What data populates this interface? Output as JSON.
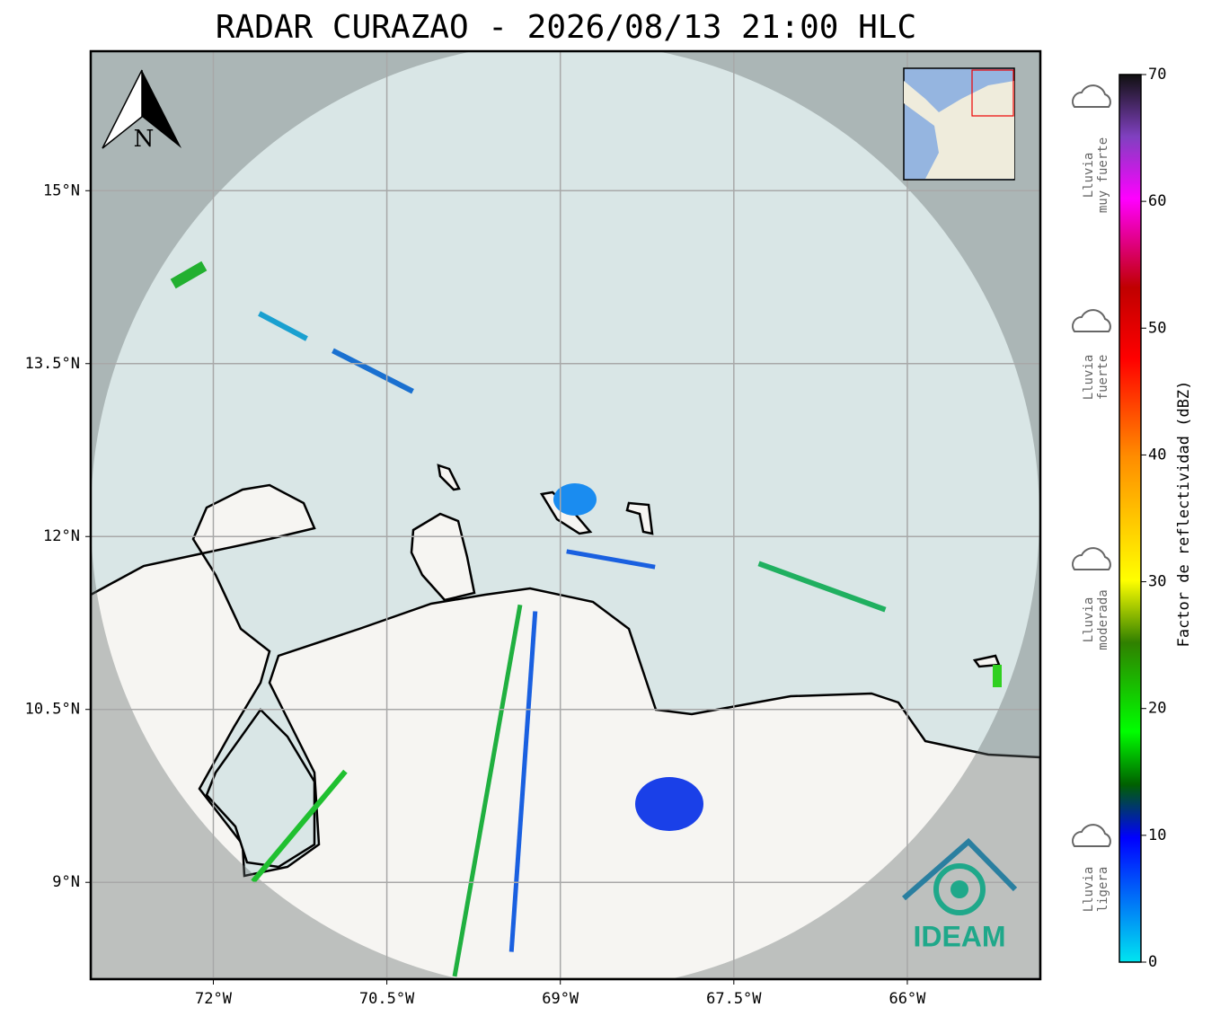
{
  "map": {
    "title": "RADAR CURAZAO - 2026/08/13 21:00 HLC",
    "xlim": [
      -73.06,
      -64.85
    ],
    "ylim": [
      8.16,
      16.21
    ],
    "lon_ticks": [
      {
        "value": -72,
        "label": "72°W"
      },
      {
        "value": -70.5,
        "label": "70.5°W"
      },
      {
        "value": -69,
        "label": "69°W"
      },
      {
        "value": -67.5,
        "label": "67.5°W"
      },
      {
        "value": -66,
        "label": "66°W"
      }
    ],
    "lat_ticks": [
      {
        "value": 15,
        "label": "15°N"
      },
      {
        "value": 13.5,
        "label": "13.5°N"
      },
      {
        "value": 12,
        "label": "12°N"
      },
      {
        "value": 10.5,
        "label": "10.5°N"
      },
      {
        "value": 9,
        "label": "9°N"
      }
    ],
    "north": "N",
    "logo": "IDEAM"
  },
  "colorbar": {
    "label": "Factor de reflectividad (dBZ)",
    "lim": [
      0,
      70
    ],
    "ticks": [
      0,
      10,
      20,
      30,
      40,
      50,
      60,
      70
    ]
  },
  "legend": [
    [
      "Lluvia",
      "muy fuerte"
    ],
    [
      "Lluvia",
      "fuerte"
    ],
    [
      "Lluvia",
      "moderada"
    ],
    [
      "Lluvia",
      "ligera"
    ]
  ]
}
